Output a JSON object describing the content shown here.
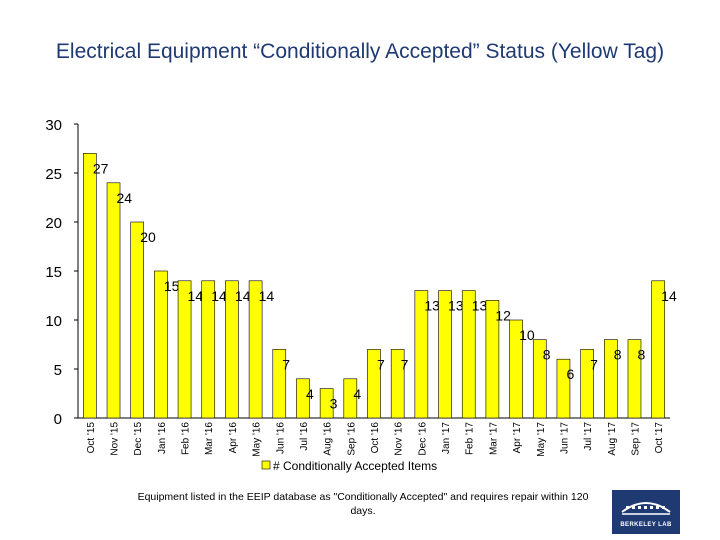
{
  "title": "Electrical Equipment “Conditionally Accepted” Status (Yellow Tag)",
  "footnote": "Equipment listed in the EEIP database as \"Conditionally Accepted\" and requires repair within 120 days.",
  "logo": {
    "text": "BERKELEY LAB"
  },
  "colors": {
    "bar": "#ffff00",
    "bar_stroke": "#000000",
    "title": "#1f3a73",
    "logo_bg": "#1f3a73"
  },
  "chart_data": {
    "type": "bar",
    "categories": [
      "Oct '15",
      "Nov '15",
      "Dec '15",
      "Jan '16",
      "Feb '16",
      "Mar '16",
      "Apr '16",
      "May '16",
      "Jun '16",
      "Jul '16",
      "Aug '16",
      "Sep '16",
      "Oct '16",
      "Nov '16",
      "Dec '16",
      "Jan '17",
      "Feb '17",
      "Mar '17",
      "Apr '17",
      "May '17",
      "Jun '17",
      "Jul '17",
      "Aug '17",
      "Sep '17",
      "Oct '17"
    ],
    "series": [
      {
        "name": "# Conditionally Accepted Items",
        "values": [
          27,
          24,
          20,
          15,
          14,
          14,
          14,
          14,
          7,
          4,
          3,
          4,
          7,
          7,
          13,
          13,
          13,
          12,
          10,
          8,
          6,
          7,
          8,
          8,
          14
        ]
      }
    ],
    "yticks": [
      0,
      5,
      10,
      15,
      20,
      25,
      30
    ],
    "ylim": [
      0,
      30
    ],
    "legend": "bottom",
    "grid": false
  }
}
